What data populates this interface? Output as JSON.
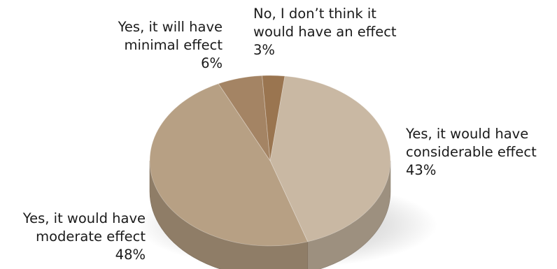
{
  "chart_data": {
    "type": "pie",
    "title": "",
    "slices": [
      {
        "label_lines": [
          "Yes, it would have",
          "considerable effect"
        ],
        "value": 43,
        "value_label": "43%",
        "color": "#c9b8a3"
      },
      {
        "label_lines": [
          "Yes, it would have",
          "moderate effect"
        ],
        "value": 48,
        "value_label": "48%",
        "color": "#b7a084"
      },
      {
        "label_lines": [
          "Yes, it will have",
          "minimal effect"
        ],
        "value": 6,
        "value_label": "6%",
        "color": "#a48464"
      },
      {
        "label_lines": [
          "No, I don’t think it",
          "would have an effect"
        ],
        "value": 3,
        "value_label": "3%",
        "color": "#9a7550"
      }
    ],
    "style": "3d-pie",
    "legend": "none"
  }
}
